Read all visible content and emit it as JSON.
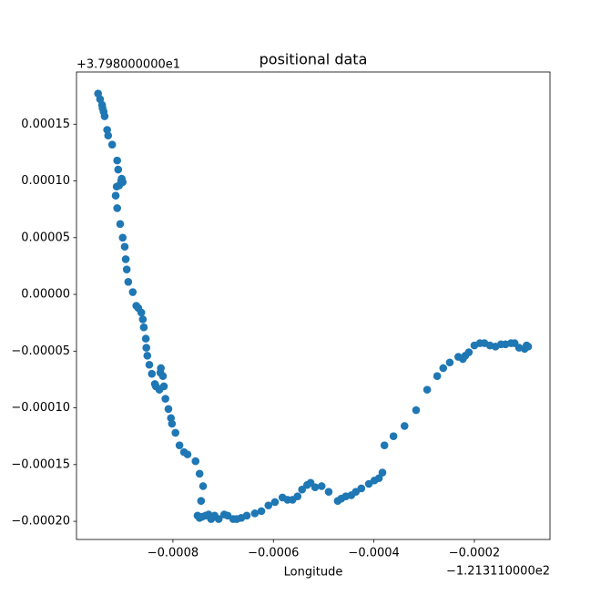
{
  "chart_data": {
    "type": "scatter",
    "title": "positional data",
    "x_label": "Longitude",
    "x_offset_label": "−1.213110000e2",
    "y_offset_label": "+3.798000000e1",
    "color": "#1f77b4",
    "x": [
      -0.000949,
      -0.000945,
      -0.000941,
      -0.00094,
      -0.000938,
      -0.000936,
      -0.000931,
      -0.000929,
      -0.000921,
      -0.000911,
      -0.000909,
      -0.000903,
      -0.0009,
      -0.000902,
      -0.000907,
      -0.000912,
      -0.000914,
      -0.000911,
      -0.000905,
      -0.0009,
      -0.000896,
      -0.000894,
      -0.000892,
      -0.000889,
      -0.00088,
      -0.000873,
      -0.000869,
      -0.000863,
      -0.00086,
      -0.000858,
      -0.000854,
      -0.000853,
      -0.000851,
      -0.000847,
      -0.000842,
      -0.000836,
      -0.000834,
      -0.000827,
      -0.000824,
      -0.000825,
      -0.00082,
      -0.000818,
      -0.000815,
      -0.000809,
      -0.000804,
      -0.000802,
      -0.000795,
      -0.000787,
      -0.000778,
      -0.000771,
      -0.000755,
      -0.000747,
      -0.00074,
      -0.000744,
      -0.000751,
      -0.000747,
      -0.000742,
      -0.000735,
      -0.000729,
      -0.000724,
      -0.000717,
      -0.000709,
      -0.000698,
      -0.000691,
      -0.00068,
      -0.000673,
      -0.000664,
      -0.000653,
      -0.000637,
      -0.000624,
      -0.00061,
      -0.000597,
      -0.000582,
      -0.000572,
      -0.000562,
      -0.000552,
      -0.000543,
      -0.000533,
      -0.000526,
      -0.000517,
      -0.000504,
      -0.00049,
      -0.000472,
      -0.000465,
      -0.000456,
      -0.000445,
      -0.000436,
      -0.000425,
      -0.00041,
      -0.000399,
      -0.00039,
      -0.000383,
      -0.000379,
      -0.000361,
      -0.000339,
      -0.000316,
      -0.000294,
      -0.000274,
      -0.000262,
      -0.000249,
      -0.000232,
      -0.000223,
      -0.000218,
      -0.000211,
      -0.0002,
      -0.000189,
      -0.00018,
      -0.000169,
      -0.000158,
      -0.000147,
      -0.000138,
      -0.000127,
      -0.00012,
      -0.000111,
      -0.0001,
      -9.6e-05,
      -9.3e-05
    ],
    "values": [
      0.000177,
      0.000172,
      0.000167,
      0.000164,
      0.000161,
      0.000157,
      0.000145,
      0.00014,
      0.000132,
      0.000118,
      0.00011,
      0.0001,
      9.9e-05,
      0.000102,
      9.6e-05,
      9.5e-05,
      8.7e-05,
      7.6e-05,
      6.2e-05,
      5e-05,
      4.2e-05,
      3.1e-05,
      2.2e-05,
      1.1e-05,
      2e-06,
      -1e-05,
      -1.2e-05,
      -1.6e-05,
      -2.2e-05,
      -2.9e-05,
      -3.9e-05,
      -4.7e-05,
      -5.4e-05,
      -6.2e-05,
      -7e-05,
      -7.9e-05,
      -8.1e-05,
      -8.4e-05,
      -6.5e-05,
      -6.9e-05,
      -7.2e-05,
      -8.1e-05,
      -9.2e-05,
      -0.000101,
      -0.000109,
      -0.000114,
      -0.000122,
      -0.000133,
      -0.000139,
      -0.000141,
      -0.000147,
      -0.000158,
      -0.000169,
      -0.000182,
      -0.000195,
      -0.000197,
      -0.000196,
      -0.000195,
      -0.000194,
      -0.000198,
      -0.000195,
      -0.000198,
      -0.000194,
      -0.000195,
      -0.000198,
      -0.000198,
      -0.000197,
      -0.000195,
      -0.000193,
      -0.000191,
      -0.000186,
      -0.000183,
      -0.000179,
      -0.000181,
      -0.000181,
      -0.000178,
      -0.000172,
      -0.000168,
      -0.000166,
      -0.00017,
      -0.000169,
      -0.000174,
      -0.000182,
      -0.00018,
      -0.000178,
      -0.000177,
      -0.000174,
      -0.000171,
      -0.000167,
      -0.000164,
      -0.000162,
      -0.000157,
      -0.000133,
      -0.000125,
      -0.000116,
      -0.000102,
      -8.4e-05,
      -7.2e-05,
      -6.5e-05,
      -6e-05,
      -5.5e-05,
      -5.7e-05,
      -5.4e-05,
      -5.1e-05,
      -4.5e-05,
      -4.3e-05,
      -4.3e-05,
      -4.5e-05,
      -4.6e-05,
      -4.4e-05,
      -4.4e-05,
      -4.3e-05,
      -4.3e-05,
      -4.7e-05,
      -4.8e-05,
      -4.5e-05,
      -4.6e-05
    ],
    "xlim": [
      -0.000992,
      -4.95e-05
    ],
    "xticks": [
      {
        "value": -0.0008,
        "label": "−0.0008"
      },
      {
        "value": -0.0006,
        "label": "−0.0006"
      },
      {
        "value": -0.0004,
        "label": "−0.0004"
      },
      {
        "value": -0.0002,
        "label": "−0.0002"
      }
    ],
    "ylim": [
      -0.000216,
      0.000196
    ],
    "yticks": [
      {
        "value": -0.0002,
        "label": "−0.00020"
      },
      {
        "value": -0.00015,
        "label": "−0.00015"
      },
      {
        "value": -0.0001,
        "label": "−0.00010"
      },
      {
        "value": -5e-05,
        "label": "−0.00005"
      },
      {
        "value": 0,
        "label": "0.00000"
      },
      5e-05,
      {
        "value": 0.0001,
        "label": "0.00010"
      },
      0.00015
    ],
    "grid": false
  }
}
